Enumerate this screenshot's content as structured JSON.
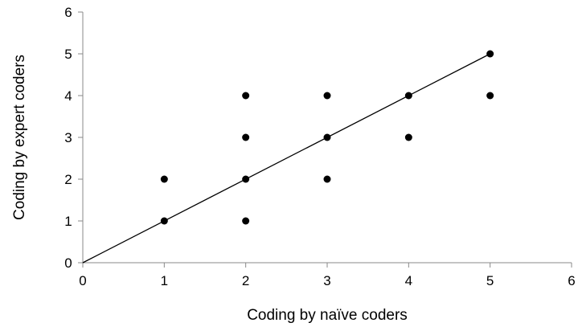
{
  "chart_data": {
    "type": "scatter",
    "title": "",
    "xlabel": "Coding by naïve coders",
    "ylabel": "Coding by expert coders",
    "xlim": [
      0,
      6
    ],
    "ylim": [
      0,
      6
    ],
    "xticks": [
      "0",
      "1",
      "2",
      "3",
      "4",
      "5",
      "6"
    ],
    "yticks": [
      "0",
      "1",
      "2",
      "3",
      "4",
      "5",
      "6"
    ],
    "grid": false,
    "legend": "none",
    "points": [
      {
        "x": 1,
        "y": 1
      },
      {
        "x": 1,
        "y": 2
      },
      {
        "x": 2,
        "y": 1
      },
      {
        "x": 2,
        "y": 2
      },
      {
        "x": 2,
        "y": 3
      },
      {
        "x": 2,
        "y": 4
      },
      {
        "x": 3,
        "y": 2
      },
      {
        "x": 3,
        "y": 3
      },
      {
        "x": 3,
        "y": 4
      },
      {
        "x": 4,
        "y": 3
      },
      {
        "x": 4,
        "y": 4
      },
      {
        "x": 5,
        "y": 4
      },
      {
        "x": 5,
        "y": 5
      }
    ],
    "reference_line": {
      "from": [
        0,
        0
      ],
      "to": [
        5,
        5
      ]
    },
    "colors": {
      "points": "#000000",
      "line": "#000000",
      "axis": "#888888"
    }
  }
}
